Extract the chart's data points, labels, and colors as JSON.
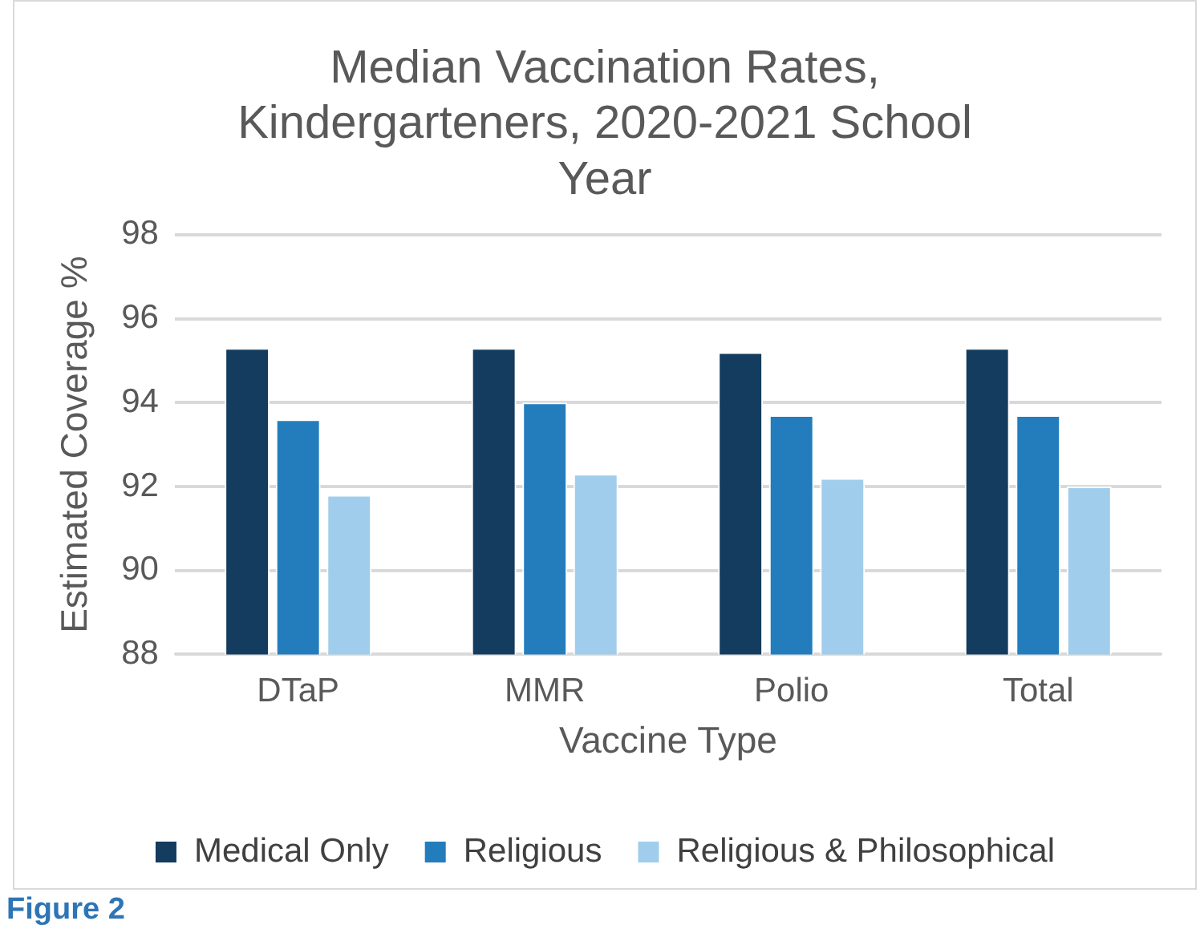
{
  "chart_data": {
    "type": "bar",
    "title": "Median Vaccination Rates, Kindergarteners, 2020-2021 School Year",
    "xlabel": "Vaccine Type",
    "ylabel": "Estimated Coverage %",
    "categories": [
      "DTaP",
      "MMR",
      "Polio",
      "Total"
    ],
    "series": [
      {
        "name": "Medical Only",
        "color": "#133c5e",
        "values": [
          95.3,
          95.3,
          95.2,
          95.3
        ]
      },
      {
        "name": "Religious",
        "color": "#237dbd",
        "values": [
          93.6,
          94.0,
          93.7,
          93.7
        ]
      },
      {
        "name": "Religious & Philosophical",
        "color": "#a1cdec",
        "values": [
          91.8,
          92.3,
          92.2,
          92.0
        ]
      }
    ],
    "ylim": [
      88,
      98
    ],
    "yticks": [
      88,
      90,
      92,
      94,
      96,
      98
    ],
    "grid": "y",
    "legend": "bottom",
    "annotations": [
      "Figure 2"
    ]
  }
}
